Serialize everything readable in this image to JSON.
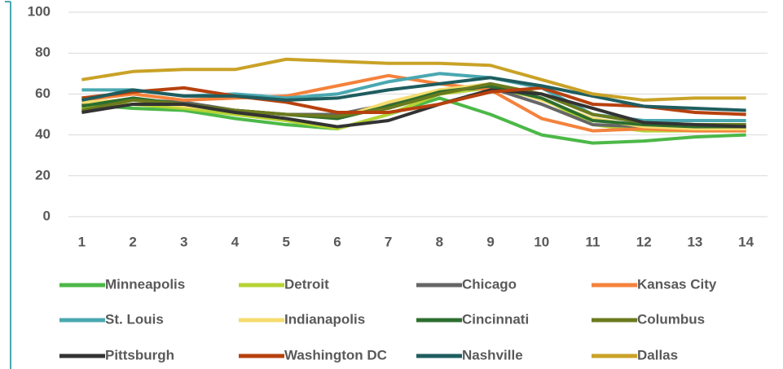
{
  "chart_data": {
    "type": "line",
    "categories": [
      1,
      2,
      3,
      4,
      5,
      6,
      7,
      8,
      9,
      10,
      11,
      12,
      13,
      14
    ],
    "ylim": [
      0,
      100
    ],
    "yticks": [
      0,
      20,
      40,
      60,
      80,
      100
    ],
    "grid": true,
    "legend": "bottom",
    "series": [
      {
        "name": "Minneapolis",
        "color": "#4cb848",
        "values": [
          55,
          53,
          52,
          48,
          45,
          43,
          50,
          58,
          50,
          40,
          36,
          37,
          39,
          40
        ]
      },
      {
        "name": "Detroit",
        "color": "#b5d334",
        "values": [
          53,
          55,
          53,
          50,
          47,
          43,
          50,
          60,
          63,
          58,
          45,
          42,
          42,
          42
        ]
      },
      {
        "name": "Chicago",
        "color": "#666666",
        "values": [
          55,
          57,
          56,
          52,
          50,
          50,
          55,
          62,
          63,
          55,
          45,
          44,
          43,
          43
        ]
      },
      {
        "name": "Kansas City",
        "color": "#f4823c",
        "values": [
          57,
          60,
          57,
          58,
          59,
          64,
          69,
          65,
          62,
          48,
          42,
          43,
          42,
          42
        ]
      },
      {
        "name": "St. Louis",
        "color": "#4aa8b0",
        "values": [
          62,
          62,
          59,
          60,
          58,
          60,
          66,
          70,
          68,
          63,
          50,
          47,
          47,
          47
        ]
      },
      {
        "name": "Indianapolis",
        "color": "#f5dc6e",
        "values": [
          56,
          57,
          54,
          52,
          50,
          48,
          56,
          62,
          65,
          57,
          48,
          44,
          43,
          43
        ]
      },
      {
        "name": "Cincinnati",
        "color": "#2c6e2e",
        "values": [
          54,
          58,
          55,
          52,
          50,
          48,
          54,
          61,
          64,
          58,
          47,
          45,
          44,
          44
        ]
      },
      {
        "name": "Columbus",
        "color": "#6b7a1e",
        "values": [
          52,
          57,
          55,
          52,
          50,
          49,
          53,
          60,
          65,
          60,
          50,
          46,
          45,
          45
        ]
      },
      {
        "name": "Pittsburgh",
        "color": "#333333",
        "values": [
          51,
          55,
          55,
          51,
          48,
          44,
          47,
          55,
          62,
          60,
          53,
          46,
          45,
          44
        ]
      },
      {
        "name": "Washington DC",
        "color": "#b7410e",
        "values": [
          58,
          61,
          63,
          59,
          56,
          51,
          51,
          55,
          61,
          63,
          55,
          54,
          51,
          50
        ]
      },
      {
        "name": "Nashville",
        "color": "#1f5d5f",
        "values": [
          57,
          62,
          59,
          59,
          57,
          58,
          62,
          65,
          68,
          64,
          59,
          54,
          53,
          52
        ]
      },
      {
        "name": "Dallas",
        "color": "#c9a227",
        "values": [
          67,
          71,
          72,
          72,
          77,
          76,
          75,
          75,
          74,
          67,
          60,
          57,
          58,
          58
        ]
      }
    ]
  }
}
